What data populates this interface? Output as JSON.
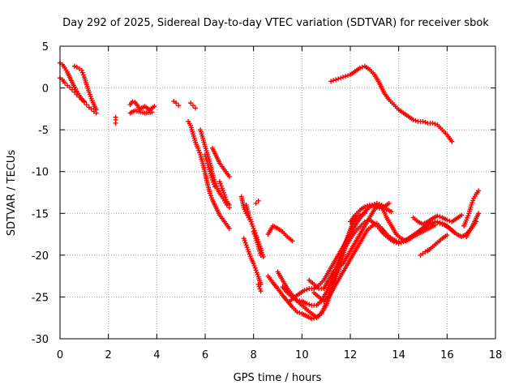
{
  "chart_data": {
    "type": "scatter",
    "title": "Day 292 of 2025, Sidereal Day-to-day VTEC variation (SDTVAR) for receiver sbok",
    "xlabel": "GPS time / hours",
    "ylabel": "SDTVAR / TECUs",
    "xlim": [
      0,
      18
    ],
    "ylim": [
      -30,
      5
    ],
    "xticks": [
      0,
      2,
      4,
      6,
      8,
      10,
      12,
      14,
      16,
      18
    ],
    "xtick_labels": [
      "0",
      "2",
      "4",
      "6",
      "8",
      "10",
      "12",
      "14",
      "16",
      "18"
    ],
    "yticks": [
      5,
      0,
      -5,
      -10,
      -15,
      -20,
      -25,
      -30
    ],
    "ytick_labels": [
      "5",
      "0",
      "-5",
      "-10",
      "-15",
      "-20",
      "-25",
      "-30"
    ],
    "grid": true,
    "marker": "+",
    "color": "#ff0000",
    "series": [
      {
        "name": "s1",
        "x": [
          0.0,
          0.1,
          0.2,
          0.3,
          0.4,
          0.5,
          0.6,
          0.7,
          0.8,
          0.9,
          1.0,
          1.1,
          1.2,
          1.3,
          1.4,
          1.5
        ],
        "y": [
          3.0,
          2.8,
          2.4,
          1.9,
          1.3,
          0.7,
          0.1,
          -0.4,
          -0.9,
          -1.3,
          -1.7,
          -2.0,
          -2.3,
          -2.5,
          -2.8,
          -3.0
        ]
      },
      {
        "name": "s2",
        "x": [
          0.0,
          0.1,
          0.2,
          0.3,
          0.4,
          0.5,
          0.6,
          0.7,
          0.8,
          0.9,
          1.0
        ],
        "y": [
          1.2,
          1.0,
          0.6,
          0.3,
          0.1,
          -0.2,
          -0.5,
          -0.8,
          -1.1,
          -1.4,
          -1.6
        ]
      },
      {
        "name": "s3",
        "x": [
          0.6,
          0.7,
          0.8,
          0.9,
          1.0,
          1.1,
          1.2,
          1.3,
          1.4,
          1.5
        ],
        "y": [
          2.6,
          2.5,
          2.3,
          2.1,
          1.3,
          0.4,
          -0.5,
          -1.3,
          -2.0,
          -2.6
        ]
      },
      {
        "name": "s4",
        "x": [
          2.3,
          2.3,
          2.3
        ],
        "y": [
          -3.5,
          -3.8,
          -4.2
        ]
      },
      {
        "name": "s5",
        "x": [
          2.9,
          3.0,
          3.1,
          3.2,
          3.3,
          3.5,
          3.7,
          3.9
        ],
        "y": [
          -2.0,
          -1.6,
          -1.7,
          -2.1,
          -2.5,
          -2.2,
          -2.6,
          -2.2
        ]
      },
      {
        "name": "s6",
        "x": [
          2.9,
          3.1,
          3.5,
          3.8
        ],
        "y": [
          -3.0,
          -2.7,
          -3.0,
          -2.9
        ]
      },
      {
        "name": "s7",
        "x": [
          4.7,
          4.8,
          4.9
        ],
        "y": [
          -1.6,
          -1.8,
          -2.1
        ]
      },
      {
        "name": "s8",
        "x": [
          5.4,
          5.5,
          5.6
        ],
        "y": [
          -1.8,
          -2.1,
          -2.4
        ]
      },
      {
        "name": "s9",
        "x": [
          5.3,
          5.4,
          5.5,
          5.6,
          5.7,
          5.8,
          5.9,
          6.0,
          6.1,
          6.2,
          6.3,
          6.4,
          6.5,
          6.6,
          6.7,
          6.8,
          6.9,
          7.0
        ],
        "y": [
          -4.0,
          -4.5,
          -5.5,
          -6.5,
          -7.2,
          -8.0,
          -9.0,
          -10.2,
          -11.5,
          -12.6,
          -13.4,
          -14.0,
          -14.6,
          -15.2,
          -15.6,
          -16.0,
          -16.4,
          -16.8
        ]
      },
      {
        "name": "s10",
        "x": [
          5.8,
          5.9,
          6.0,
          6.1,
          6.2,
          6.3,
          6.4,
          6.5,
          6.6,
          6.7,
          6.8,
          6.9,
          7.0
        ],
        "y": [
          -5.0,
          -6.0,
          -7.0,
          -8.0,
          -9.0,
          -10.2,
          -11.2,
          -12.0,
          -12.6,
          -13.0,
          -13.5,
          -14.0,
          -14.3
        ]
      },
      {
        "name": "s11",
        "x": [
          6.3,
          6.4,
          6.5,
          6.6,
          6.7,
          6.8,
          6.9,
          7.0
        ],
        "y": [
          -7.2,
          -7.8,
          -8.4,
          -9.0,
          -9.4,
          -9.8,
          -10.2,
          -10.6
        ]
      },
      {
        "name": "s12",
        "x": [
          6.0,
          6.1,
          6.2,
          6.3,
          6.4
        ],
        "y": [
          -8.0,
          -9.0,
          -10.0,
          -11.0,
          -11.8
        ]
      },
      {
        "name": "s13",
        "x": [
          6.6,
          6.7,
          6.8,
          6.9,
          7.0
        ],
        "y": [
          -11.2,
          -12.0,
          -12.8,
          -13.6,
          -14.0
        ]
      },
      {
        "name": "s14",
        "x": [
          7.5,
          7.6,
          7.7,
          7.8,
          7.9
        ],
        "y": [
          -13.0,
          -14.3,
          -15.0,
          -15.5,
          -16.0
        ]
      },
      {
        "name": "s15",
        "x": [
          7.6,
          7.7,
          7.8,
          7.9,
          8.0,
          8.1,
          8.2,
          8.3
        ],
        "y": [
          -18.0,
          -18.8,
          -19.6,
          -20.4,
          -21.0,
          -21.8,
          -22.6,
          -23.5
        ]
      },
      {
        "name": "s16",
        "x": [
          7.7,
          7.8,
          7.9,
          8.0,
          8.1,
          8.2,
          8.3,
          8.4
        ],
        "y": [
          -14.0,
          -15.2,
          -16.0,
          -16.8,
          -17.6,
          -18.4,
          -19.2,
          -20.2
        ]
      },
      {
        "name": "s17",
        "x": [
          8.0,
          8.1,
          8.2,
          8.3
        ],
        "y": [
          -17.2,
          -18.0,
          -19.0,
          -20.0
        ]
      },
      {
        "name": "s18",
        "x": [
          8.1,
          8.2
        ],
        "y": [
          -13.8,
          -13.5
        ]
      },
      {
        "name": "s19",
        "x": [
          8.2,
          8.3
        ],
        "y": [
          -23.5,
          -24.3
        ]
      },
      {
        "name": "s20",
        "x": [
          8.6,
          8.8,
          9.0,
          9.2,
          9.4,
          9.6
        ],
        "y": [
          -17.5,
          -16.5,
          -16.8,
          -17.2,
          -17.8,
          -18.3
        ]
      },
      {
        "name": "s21",
        "x": [
          8.6,
          8.8,
          9.0,
          9.2,
          9.4,
          9.6,
          9.8,
          10.0,
          10.2,
          10.4,
          10.6,
          10.8,
          11.0,
          11.2,
          11.4,
          11.6,
          11.8,
          12.0,
          12.2
        ],
        "y": [
          -22.5,
          -23.3,
          -24.0,
          -24.8,
          -25.5,
          -26.2,
          -26.8,
          -27.0,
          -27.3,
          -27.6,
          -27.5,
          -27.0,
          -26.0,
          -24.5,
          -22.8,
          -21.0,
          -19.0,
          -17.0,
          -15.3
        ]
      },
      {
        "name": "s22",
        "x": [
          9.0,
          9.2,
          9.4,
          9.6,
          9.8,
          10.0,
          10.2,
          10.4,
          10.6,
          10.8,
          11.0,
          11.2,
          11.4,
          11.6,
          11.8,
          12.0,
          12.2
        ],
        "y": [
          -22.0,
          -23.0,
          -24.0,
          -24.8,
          -25.5,
          -26.0,
          -26.5,
          -27.0,
          -27.4,
          -27.0,
          -25.8,
          -24.0,
          -22.2,
          -20.5,
          -18.8,
          -17.0,
          -15.6
        ]
      },
      {
        "name": "s23",
        "x": [
          9.2,
          9.4,
          9.6,
          9.8,
          10.0,
          10.2,
          10.4,
          10.6,
          10.8,
          11.0,
          11.2,
          11.4,
          11.6,
          11.8,
          12.0,
          12.2,
          12.4,
          12.6
        ],
        "y": [
          -23.8,
          -24.5,
          -25.0,
          -25.4,
          -25.5,
          -25.8,
          -26.0,
          -26.0,
          -25.5,
          -24.5,
          -23.0,
          -21.5,
          -20.0,
          -18.5,
          -17.0,
          -15.8,
          -15.2,
          -15.0
        ]
      },
      {
        "name": "s24",
        "x": [
          9.5,
          9.7,
          9.9,
          10.1,
          10.3,
          10.5,
          10.7,
          10.9,
          11.1,
          11.3,
          11.5,
          11.7,
          11.9,
          12.1,
          12.3,
          12.5,
          12.7,
          12.9,
          13.1,
          13.3,
          13.5,
          13.7
        ],
        "y": [
          -25.5,
          -25.0,
          -24.6,
          -24.2,
          -24.0,
          -24.0,
          -23.6,
          -23.0,
          -22.0,
          -21.0,
          -20.0,
          -19.0,
          -18.0,
          -17.0,
          -16.0,
          -15.2,
          -14.5,
          -14.0,
          -13.8,
          -14.0,
          -14.5,
          -14.8
        ]
      },
      {
        "name": "s25",
        "x": [
          10.3,
          10.5,
          10.7,
          10.9,
          11.1,
          11.3,
          11.5,
          11.7,
          11.9,
          12.1,
          12.3,
          12.5,
          12.7,
          12.9,
          13.1,
          13.3,
          13.5,
          13.7,
          13.9,
          14.1,
          14.3,
          14.5,
          14.7,
          14.9,
          15.1,
          15.3,
          15.5,
          15.7,
          15.9,
          16.1,
          16.3
        ],
        "y": [
          -23.0,
          -23.5,
          -24.0,
          -24.0,
          -23.0,
          -22.0,
          -21.5,
          -21.0,
          -20.0,
          -19.0,
          -18.0,
          -17.0,
          -16.0,
          -15.0,
          -14.0,
          -14.2,
          -15.5,
          -16.5,
          -17.5,
          -18.0,
          -18.3,
          -18.0,
          -17.5,
          -17.0,
          -16.5,
          -16.2,
          -16.0,
          -16.2,
          -16.4,
          -16.8,
          -17.3
        ]
      },
      {
        "name": "s26",
        "x": [
          10.5,
          10.7,
          10.9,
          11.1,
          11.3,
          11.5,
          11.7,
          11.9,
          12.1,
          12.3,
          12.5,
          12.7,
          12.9,
          13.1,
          13.3,
          13.5,
          13.7,
          13.9,
          14.1,
          14.3,
          14.5,
          14.7,
          14.9,
          15.1,
          15.3,
          15.5
        ],
        "y": [
          -24.5,
          -25.0,
          -25.5,
          -25.0,
          -24.0,
          -23.0,
          -22.0,
          -21.0,
          -20.0,
          -19.0,
          -18.0,
          -17.0,
          -16.5,
          -16.2,
          -16.8,
          -17.5,
          -18.0,
          -18.3,
          -18.4,
          -18.2,
          -17.9,
          -17.6,
          -17.3,
          -17.0,
          -16.7,
          -16.4
        ]
      },
      {
        "name": "s27",
        "x": [
          11.8,
          12.0,
          12.2,
          12.4,
          12.6,
          12.8,
          13.0,
          13.2,
          13.4,
          13.6,
          13.8,
          14.0,
          14.2,
          14.4,
          14.6,
          14.8,
          15.0,
          15.2,
          15.4,
          15.6,
          15.8,
          16.0,
          16.2,
          16.4,
          16.6,
          16.8,
          17.0,
          17.2
        ],
        "y": [
          -19.0,
          -18.0,
          -17.2,
          -16.6,
          -16.0,
          -15.8,
          -16.2,
          -16.8,
          -17.5,
          -18.0,
          -18.4,
          -18.6,
          -18.4,
          -18.0,
          -17.6,
          -17.2,
          -16.8,
          -16.4,
          -16.2,
          -16.0,
          -16.2,
          -16.5,
          -17.0,
          -17.5,
          -17.8,
          -17.5,
          -16.8,
          -16.0
        ]
      },
      {
        "name": "s28",
        "x": [
          12.0,
          12.2,
          12.4,
          12.6,
          12.8,
          13.0,
          13.2,
          13.4,
          13.6
        ],
        "y": [
          -16.0,
          -15.2,
          -14.6,
          -14.2,
          -14.0,
          -14.2,
          -14.4,
          -14.2,
          -13.8
        ]
      },
      {
        "name": "s29",
        "x": [
          14.6,
          14.8,
          15.0,
          15.2,
          15.4,
          15.6,
          15.8,
          16.0,
          16.2,
          16.4,
          16.6
        ],
        "y": [
          -15.5,
          -16.0,
          -16.3,
          -16.0,
          -15.6,
          -15.3,
          -15.5,
          -15.8,
          -16.0,
          -15.6,
          -15.2
        ]
      },
      {
        "name": "s30",
        "x": [
          15.2,
          15.4,
          15.6,
          15.8,
          16.0
        ],
        "y": [
          -19.5,
          -19.0,
          -18.5,
          -18.0,
          -17.6
        ]
      },
      {
        "name": "s31",
        "x": [
          14.9,
          15.0,
          15.1,
          15.2
        ],
        "y": [
          -20.0,
          -19.8,
          -19.6,
          -19.4
        ]
      },
      {
        "name": "s32",
        "x": [
          16.7,
          16.8,
          16.9,
          17.0,
          17.1,
          17.2,
          17.3
        ],
        "y": [
          -16.5,
          -15.8,
          -15.0,
          -14.0,
          -13.2,
          -12.7,
          -12.3
        ]
      },
      {
        "name": "s33",
        "x": [
          16.8,
          16.9,
          17.0,
          17.1,
          17.2,
          17.3
        ],
        "y": [
          -17.8,
          -17.2,
          -16.8,
          -16.2,
          -15.6,
          -15.0
        ]
      },
      {
        "name": "s34",
        "x": [
          11.2,
          11.4,
          11.6,
          11.8,
          12.0,
          12.2,
          12.4,
          12.6,
          12.8,
          13.0,
          13.2,
          13.4,
          13.6,
          13.8,
          14.0,
          14.2,
          14.4,
          14.6,
          14.8,
          15.0,
          15.2,
          15.4,
          15.6,
          15.8,
          16.0,
          16.2
        ],
        "y": [
          0.8,
          1.0,
          1.2,
          1.4,
          1.6,
          2.0,
          2.4,
          2.6,
          2.2,
          1.6,
          0.6,
          -0.6,
          -1.4,
          -2.0,
          -2.6,
          -3.0,
          -3.4,
          -3.8,
          -4.0,
          -4.0,
          -4.2,
          -4.2,
          -4.4,
          -5.0,
          -5.6,
          -6.4
        ]
      }
    ]
  }
}
